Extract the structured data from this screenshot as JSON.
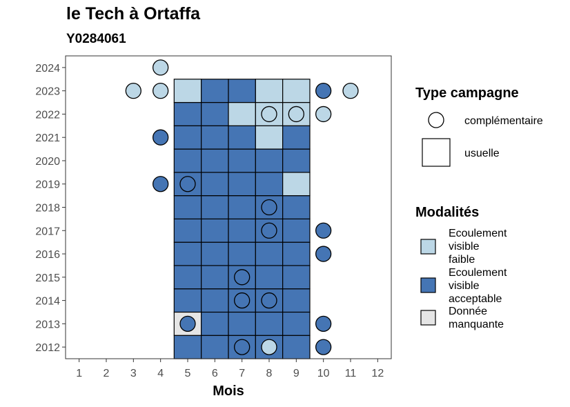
{
  "chart_data": {
    "type": "heatmap",
    "title": "le Tech à Ortaffa",
    "subtitle": "Y0284061",
    "xlabel": "Mois",
    "ylabel": "",
    "x_ticks": [
      "1",
      "2",
      "3",
      "4",
      "5",
      "6",
      "7",
      "8",
      "9",
      "10",
      "11",
      "12"
    ],
    "y_ticks": [
      "2012",
      "2013",
      "2014",
      "2015",
      "2016",
      "2017",
      "2018",
      "2019",
      "2020",
      "2021",
      "2022",
      "2023",
      "2024"
    ],
    "colors": {
      "Ecoulement visible faible": "#bcd7e6",
      "Ecoulement visible acceptable": "#4575b4",
      "Donnée manquante": "#e5e5e5"
    },
    "usuelle": [
      {
        "year": 2012,
        "month": 5,
        "modalite": "Ecoulement visible acceptable"
      },
      {
        "year": 2012,
        "month": 6,
        "modalite": "Ecoulement visible acceptable"
      },
      {
        "year": 2012,
        "month": 7,
        "modalite": "Ecoulement visible acceptable"
      },
      {
        "year": 2012,
        "month": 8,
        "modalite": "Ecoulement visible acceptable"
      },
      {
        "year": 2012,
        "month": 9,
        "modalite": "Ecoulement visible acceptable"
      },
      {
        "year": 2013,
        "month": 5,
        "modalite": "Donnée manquante"
      },
      {
        "year": 2013,
        "month": 6,
        "modalite": "Ecoulement visible acceptable"
      },
      {
        "year": 2013,
        "month": 7,
        "modalite": "Ecoulement visible acceptable"
      },
      {
        "year": 2013,
        "month": 8,
        "modalite": "Ecoulement visible acceptable"
      },
      {
        "year": 2013,
        "month": 9,
        "modalite": "Ecoulement visible acceptable"
      },
      {
        "year": 2014,
        "month": 5,
        "modalite": "Ecoulement visible acceptable"
      },
      {
        "year": 2014,
        "month": 6,
        "modalite": "Ecoulement visible acceptable"
      },
      {
        "year": 2014,
        "month": 7,
        "modalite": "Ecoulement visible acceptable"
      },
      {
        "year": 2014,
        "month": 8,
        "modalite": "Ecoulement visible acceptable"
      },
      {
        "year": 2014,
        "month": 9,
        "modalite": "Ecoulement visible acceptable"
      },
      {
        "year": 2015,
        "month": 5,
        "modalite": "Ecoulement visible acceptable"
      },
      {
        "year": 2015,
        "month": 6,
        "modalite": "Ecoulement visible acceptable"
      },
      {
        "year": 2015,
        "month": 7,
        "modalite": "Ecoulement visible acceptable"
      },
      {
        "year": 2015,
        "month": 8,
        "modalite": "Ecoulement visible acceptable"
      },
      {
        "year": 2015,
        "month": 9,
        "modalite": "Ecoulement visible acceptable"
      },
      {
        "year": 2016,
        "month": 5,
        "modalite": "Ecoulement visible acceptable"
      },
      {
        "year": 2016,
        "month": 6,
        "modalite": "Ecoulement visible acceptable"
      },
      {
        "year": 2016,
        "month": 7,
        "modalite": "Ecoulement visible acceptable"
      },
      {
        "year": 2016,
        "month": 8,
        "modalite": "Ecoulement visible acceptable"
      },
      {
        "year": 2016,
        "month": 9,
        "modalite": "Ecoulement visible acceptable"
      },
      {
        "year": 2017,
        "month": 5,
        "modalite": "Ecoulement visible acceptable"
      },
      {
        "year": 2017,
        "month": 6,
        "modalite": "Ecoulement visible acceptable"
      },
      {
        "year": 2017,
        "month": 7,
        "modalite": "Ecoulement visible acceptable"
      },
      {
        "year": 2017,
        "month": 8,
        "modalite": "Ecoulement visible acceptable"
      },
      {
        "year": 2017,
        "month": 9,
        "modalite": "Ecoulement visible acceptable"
      },
      {
        "year": 2018,
        "month": 5,
        "modalite": "Ecoulement visible acceptable"
      },
      {
        "year": 2018,
        "month": 6,
        "modalite": "Ecoulement visible acceptable"
      },
      {
        "year": 2018,
        "month": 7,
        "modalite": "Ecoulement visible acceptable"
      },
      {
        "year": 2018,
        "month": 8,
        "modalite": "Ecoulement visible acceptable"
      },
      {
        "year": 2018,
        "month": 9,
        "modalite": "Ecoulement visible acceptable"
      },
      {
        "year": 2019,
        "month": 5,
        "modalite": "Ecoulement visible acceptable"
      },
      {
        "year": 2019,
        "month": 6,
        "modalite": "Ecoulement visible acceptable"
      },
      {
        "year": 2019,
        "month": 7,
        "modalite": "Ecoulement visible acceptable"
      },
      {
        "year": 2019,
        "month": 8,
        "modalite": "Ecoulement visible acceptable"
      },
      {
        "year": 2019,
        "month": 9,
        "modalite": "Ecoulement visible faible"
      },
      {
        "year": 2020,
        "month": 5,
        "modalite": "Ecoulement visible acceptable"
      },
      {
        "year": 2020,
        "month": 6,
        "modalite": "Ecoulement visible acceptable"
      },
      {
        "year": 2020,
        "month": 7,
        "modalite": "Ecoulement visible acceptable"
      },
      {
        "year": 2020,
        "month": 8,
        "modalite": "Ecoulement visible acceptable"
      },
      {
        "year": 2020,
        "month": 9,
        "modalite": "Ecoulement visible acceptable"
      },
      {
        "year": 2021,
        "month": 5,
        "modalite": "Ecoulement visible acceptable"
      },
      {
        "year": 2021,
        "month": 6,
        "modalite": "Ecoulement visible acceptable"
      },
      {
        "year": 2021,
        "month": 7,
        "modalite": "Ecoulement visible acceptable"
      },
      {
        "year": 2021,
        "month": 8,
        "modalite": "Ecoulement visible faible"
      },
      {
        "year": 2021,
        "month": 9,
        "modalite": "Ecoulement visible acceptable"
      },
      {
        "year": 2022,
        "month": 5,
        "modalite": "Ecoulement visible acceptable"
      },
      {
        "year": 2022,
        "month": 6,
        "modalite": "Ecoulement visible acceptable"
      },
      {
        "year": 2022,
        "month": 7,
        "modalite": "Ecoulement visible faible"
      },
      {
        "year": 2022,
        "month": 8,
        "modalite": "Ecoulement visible faible"
      },
      {
        "year": 2022,
        "month": 9,
        "modalite": "Ecoulement visible faible"
      },
      {
        "year": 2023,
        "month": 5,
        "modalite": "Ecoulement visible faible"
      },
      {
        "year": 2023,
        "month": 6,
        "modalite": "Ecoulement visible acceptable"
      },
      {
        "year": 2023,
        "month": 7,
        "modalite": "Ecoulement visible acceptable"
      },
      {
        "year": 2023,
        "month": 8,
        "modalite": "Ecoulement visible faible"
      },
      {
        "year": 2023,
        "month": 9,
        "modalite": "Ecoulement visible faible"
      }
    ],
    "complementaire": [
      {
        "year": 2012,
        "month": 7,
        "modalite": "Ecoulement visible acceptable"
      },
      {
        "year": 2012,
        "month": 8,
        "modalite": "Ecoulement visible faible"
      },
      {
        "year": 2012,
        "month": 10,
        "modalite": "Ecoulement visible acceptable"
      },
      {
        "year": 2013,
        "month": 5,
        "modalite": "Ecoulement visible acceptable"
      },
      {
        "year": 2013,
        "month": 10,
        "modalite": "Ecoulement visible acceptable"
      },
      {
        "year": 2014,
        "month": 7,
        "modalite": "Ecoulement visible acceptable"
      },
      {
        "year": 2014,
        "month": 8,
        "modalite": "Ecoulement visible acceptable"
      },
      {
        "year": 2015,
        "month": 7,
        "modalite": "Ecoulement visible acceptable"
      },
      {
        "year": 2016,
        "month": 10,
        "modalite": "Ecoulement visible acceptable"
      },
      {
        "year": 2017,
        "month": 8,
        "modalite": "Ecoulement visible acceptable"
      },
      {
        "year": 2017,
        "month": 10,
        "modalite": "Ecoulement visible acceptable"
      },
      {
        "year": 2018,
        "month": 8,
        "modalite": "Ecoulement visible acceptable"
      },
      {
        "year": 2019,
        "month": 4,
        "modalite": "Ecoulement visible acceptable"
      },
      {
        "year": 2019,
        "month": 5,
        "modalite": "Ecoulement visible acceptable"
      },
      {
        "year": 2021,
        "month": 4,
        "modalite": "Ecoulement visible acceptable"
      },
      {
        "year": 2022,
        "month": 8,
        "modalite": "Ecoulement visible faible"
      },
      {
        "year": 2022,
        "month": 9,
        "modalite": "Ecoulement visible faible"
      },
      {
        "year": 2022,
        "month": 10,
        "modalite": "Ecoulement visible faible"
      },
      {
        "year": 2023,
        "month": 3,
        "modalite": "Ecoulement visible faible"
      },
      {
        "year": 2023,
        "month": 4,
        "modalite": "Ecoulement visible faible"
      },
      {
        "year": 2023,
        "month": 10,
        "modalite": "Ecoulement visible acceptable"
      },
      {
        "year": 2023,
        "month": 11,
        "modalite": "Ecoulement visible faible"
      },
      {
        "year": 2024,
        "month": 4,
        "modalite": "Ecoulement visible faible"
      }
    ],
    "legend": {
      "shape_title": "Type campagne",
      "shape_items": [
        "complémentaire",
        "usuelle"
      ],
      "fill_title": "Modalités",
      "fill_items": [
        {
          "label_lines": [
            "Ecoulement",
            "visible",
            "faible"
          ],
          "color": "#bcd7e6"
        },
        {
          "label_lines": [
            "Ecoulement",
            "visible",
            "acceptable"
          ],
          "color": "#4575b4"
        },
        {
          "label_lines": [
            "Donnée",
            "manquante"
          ],
          "color": "#e5e5e5"
        }
      ],
      "placement": "right"
    },
    "xlim": [
      0.5,
      12.5
    ],
    "ylim": [
      2011.5,
      2024.5
    ],
    "grid": false
  }
}
